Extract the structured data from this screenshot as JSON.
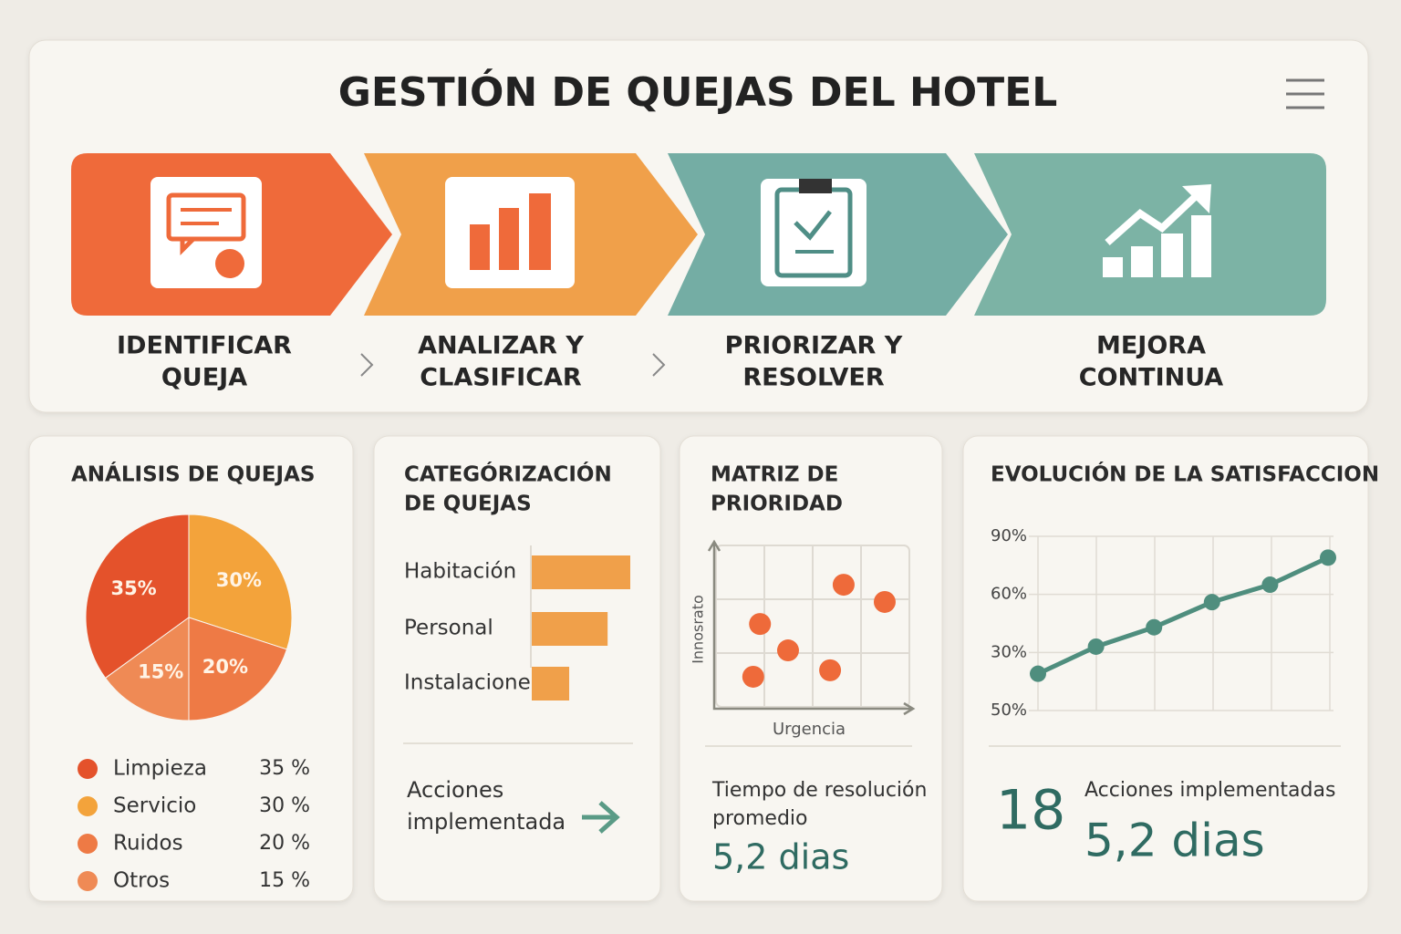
{
  "header": {
    "title": "GESTIÓN DE QUEJAS DEL HOTEL"
  },
  "steps": [
    {
      "lines": [
        "IDENTIFICAR",
        "QUEJA"
      ]
    },
    {
      "lines": [
        "ANALIZAR Y",
        "CLASIFICAR"
      ]
    },
    {
      "lines": [
        "PRIORIZAR Y",
        "RESOLVER"
      ]
    },
    {
      "lines": [
        "MEJORA",
        "CONTINUA"
      ]
    }
  ],
  "chart_data": [
    {
      "type": "pie",
      "title": "ANÁLISIS DE QUEJAS",
      "categories": [
        "Limpieza",
        "Servicio",
        "Ruidos",
        "Otros"
      ],
      "values": [
        35,
        30,
        20,
        15
      ],
      "value_labels": [
        "35%",
        "30%",
        "20%",
        "15%"
      ],
      "legend_value_labels": [
        "35 %",
        "30 %",
        "20 %",
        "15 %"
      ],
      "colors": [
        "#e4522b",
        "#f3a33b",
        "#ee7a45",
        "#ef8a55"
      ]
    },
    {
      "type": "hbar",
      "title": [
        "CATEGÓRIZACIÓN",
        "DE QUEJAS"
      ],
      "categories": [
        "Habitación",
        "Personal",
        "Instalaciones"
      ],
      "values": [
        100,
        77,
        38
      ],
      "xlim": [
        0,
        100
      ],
      "color": "#f0a04a"
    },
    {
      "type": "scatter",
      "title": [
        "MATRIZ DE",
        "PRIORIDAD"
      ],
      "xlabel": "Urgencia",
      "ylabel": "Innosrato",
      "x": [
        2.64,
        3.49,
        0.91,
        1.49,
        2.36,
        0.77
      ],
      "y": [
        2.27,
        1.95,
        1.54,
        1.05,
        0.68,
        0.56
      ],
      "xlim": [
        0,
        4
      ],
      "ylim": [
        0,
        3
      ],
      "xticks": [
        1,
        2,
        3
      ],
      "yticks": [
        1,
        2
      ],
      "grid": true,
      "color": "#ee6a3a"
    },
    {
      "type": "line",
      "title": "EVOLUCIÓN DE LA SATISFACCION",
      "categories": [
        null,
        null,
        null,
        null,
        null,
        null
      ],
      "values": [
        19,
        33,
        43,
        56,
        65,
        79
      ],
      "ylim": [
        0,
        90
      ],
      "yticks": [
        {
          "value": 90,
          "label": "90%"
        },
        {
          "value": 60,
          "label": "60%"
        },
        {
          "value": 30,
          "label": "30%"
        }
      ],
      "bottom_label": "50%",
      "grid": true,
      "color": "#4f8e7e"
    }
  ],
  "footers": [
    {
      "lines": [
        "Acciones",
        "implementada"
      ]
    },
    {
      "lines": [
        "Tiempo de resolución",
        "promedio"
      ],
      "value": "5,2 dias"
    },
    {
      "count": "18",
      "label": "Acciones implementadas",
      "value": "5,2 dias"
    }
  ]
}
